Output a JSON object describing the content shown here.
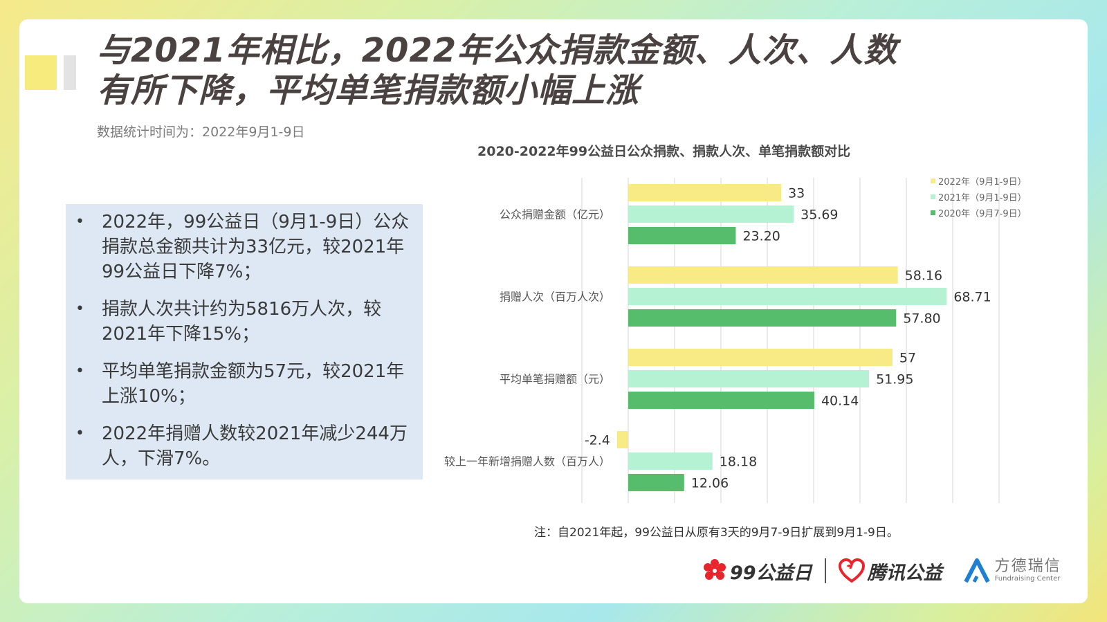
{
  "header": {
    "title_line1": "与2021年相比，2022年公众捐款金额、人次、人数",
    "title_line2": "有所下降，平均单笔捐款额小幅上涨",
    "subtitle": "数据统计时间为：2022年9月1-9日"
  },
  "summary": {
    "items": [
      "2022年，99公益日（9月1-9日）公众捐款总金额共计为33亿元，较2021年99公益日下降7%；",
      "捐款人次共计约为5816万人次，较2021年下降15%；",
      "平均单笔捐款金额为57元，较2021年上涨10%；",
      "2022年捐赠人数较2021年减少244万人，下滑7%。"
    ]
  },
  "chart_data": {
    "type": "bar",
    "orientation": "horizontal",
    "title": "2020-2022年99公益日公众捐款、捐款人次、单笔捐款额对比",
    "categories": [
      "公众捐赠金额（亿元）",
      "捐赠人次（百万人次）",
      "平均单笔捐赠额（元）",
      "较上一年新增捐赠人数（百万人）"
    ],
    "series": [
      {
        "name": "2022年（9月1-9日）",
        "color": "#f8ea85",
        "values": [
          33,
          58.16,
          57,
          -2.4
        ],
        "labels": [
          "33",
          "58.16",
          "57",
          "-2.4"
        ]
      },
      {
        "name": "2021年（9月1-9日）",
        "color": "#b5f2d4",
        "values": [
          35.69,
          68.71,
          51.95,
          18.18
        ],
        "labels": [
          "35.69",
          "68.71",
          "51.95",
          "18.18"
        ]
      },
      {
        "name": "2020年（9月7-9日）",
        "color": "#55bd6b",
        "values": [
          23.2,
          57.8,
          40.14,
          12.06
        ],
        "labels": [
          "23.20",
          "57.80",
          "40.14",
          "12.06"
        ]
      }
    ],
    "xlim": [
      -10,
      80
    ],
    "grid": true,
    "legend_position": "top-right"
  },
  "note": "注：自2021年起，99公益日从原有3天的9月7-9日扩展到9月1-9日。",
  "logos": {
    "logo1": "99公益日",
    "logo2": "腾讯公益",
    "logo3_cn": "方德瑞信",
    "logo3_en": "Fundraising Center"
  },
  "colors": {
    "title": "#4a4240",
    "summary_bg": "#dde8f4",
    "logo_red": "#e8242c",
    "logo_blue": "#1f7fd1"
  }
}
